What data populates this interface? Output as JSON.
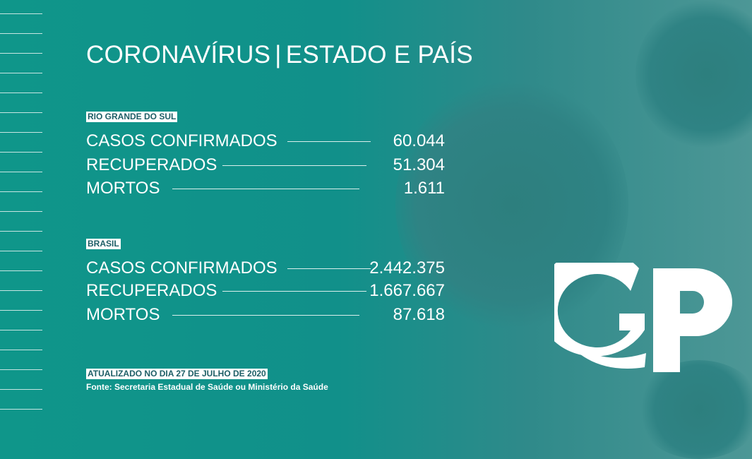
{
  "title": {
    "main": "CORONAVÍRUS",
    "separator": "|",
    "sub": "ESTADO E PAÍS"
  },
  "sections": [
    {
      "label": "RIO GRANDE DO SUL",
      "rows": [
        {
          "label": "CASOS CONFIRMADOS",
          "value": "60.044"
        },
        {
          "label": "RECUPERADOS",
          "value": "51.304"
        },
        {
          "label": "MORTOS",
          "value": "1.611"
        }
      ]
    },
    {
      "label": "BRASIL",
      "rows": [
        {
          "label": "CASOS CONFIRMADOS",
          "value": "2.442.375"
        },
        {
          "label": "RECUPERADOS",
          "value": "1.667.667"
        },
        {
          "label": "MORTOS",
          "value": "87.618"
        }
      ]
    }
  ],
  "footer": {
    "updated": "ATUALIZADO NO DIA 27 DE JULHO DE 2020",
    "source": "Fonte: Secretaria Estadual de Saúde ou Ministério da Saúde"
  },
  "logo": {
    "text": "GP"
  },
  "colors": {
    "background": "#0f968a",
    "tag_text": "#1d5e66"
  }
}
